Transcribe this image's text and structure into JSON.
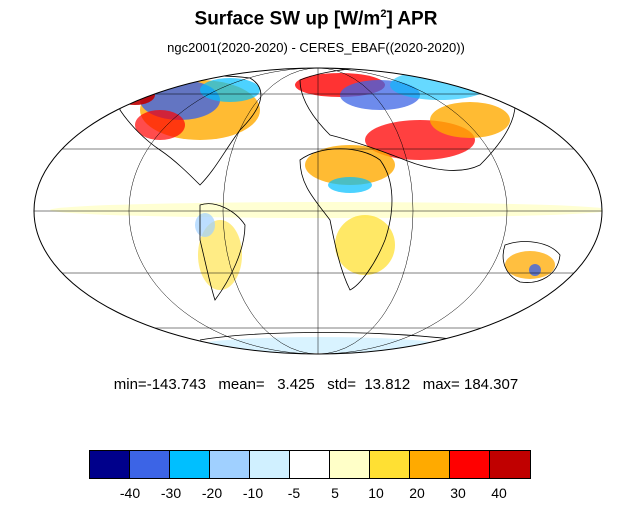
{
  "title": {
    "main": "Surface SW up [W/m",
    "sup": "2",
    "tail": "]  APR"
  },
  "subtitle": "ngc2001(2020-2020) - CERES_EBAF((2020-2020))",
  "stats": "min=-143.743   mean=   3.425   std=  13.812   max= 184.307",
  "colorbar": {
    "colors": [
      "#00008b",
      "#3c64e6",
      "#00bfff",
      "#a0d0ff",
      "#d0f0ff",
      "#ffffff",
      "#ffffc8",
      "#ffe033",
      "#ffaa00",
      "#ff0000",
      "#c00000"
    ],
    "labels": [
      "-40",
      "-30",
      "-20",
      "-10",
      "-5",
      "5",
      "10",
      "20",
      "30",
      "40"
    ]
  },
  "map": {
    "projection": "mollweide",
    "colors": {
      "ocean": "#ffffff",
      "coast": "#000000",
      "grid": "#000000"
    }
  }
}
